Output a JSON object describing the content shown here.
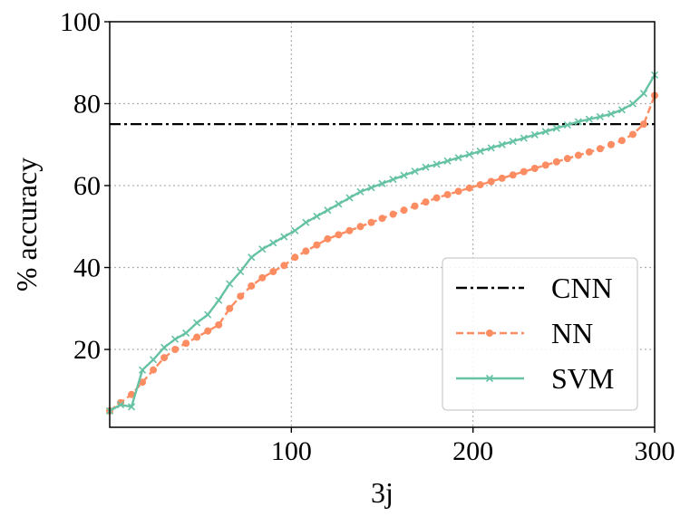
{
  "chart_data": {
    "type": "line",
    "title": "",
    "xlabel": "3j",
    "ylabel": "% accuracy",
    "xlim": [
      0,
      300
    ],
    "ylim": [
      1,
      100
    ],
    "xticks": [
      100,
      200,
      300
    ],
    "yticks": [
      20,
      40,
      60,
      80,
      100
    ],
    "grid": true,
    "legend_position": "lower-right",
    "series": [
      {
        "name": "CNN",
        "style": "dash-dot",
        "color": "#000000",
        "marker": "none",
        "x": [
          0,
          300
        ],
        "y": [
          75,
          75
        ]
      },
      {
        "name": "NN",
        "style": "dashed",
        "color": "#fc8d62",
        "marker": "circle",
        "x": [
          0,
          6,
          12,
          18,
          24,
          30,
          36,
          42,
          48,
          54,
          60,
          66,
          72,
          78,
          84,
          90,
          96,
          102,
          108,
          114,
          120,
          126,
          132,
          138,
          144,
          150,
          156,
          162,
          168,
          174,
          180,
          186,
          192,
          198,
          204,
          210,
          216,
          222,
          228,
          234,
          240,
          246,
          252,
          258,
          264,
          270,
          276,
          282,
          288,
          294,
          300
        ],
        "y": [
          5,
          7,
          9,
          12,
          15,
          18,
          20,
          21.5,
          23,
          24.5,
          26,
          30,
          33,
          35.5,
          37.5,
          39,
          40.5,
          42.5,
          44,
          45.5,
          47,
          48,
          49,
          50,
          51,
          52,
          53,
          54,
          55,
          56,
          57,
          57.8,
          58.6,
          59.4,
          60.2,
          61,
          61.8,
          62.6,
          63.4,
          64.2,
          65,
          65.8,
          66.6,
          67.4,
          68.2,
          69,
          70,
          71,
          72.5,
          75,
          82
        ]
      },
      {
        "name": "SVM",
        "style": "solid",
        "color": "#66c2a5",
        "marker": "x",
        "x": [
          0,
          6,
          12,
          18,
          24,
          30,
          36,
          42,
          48,
          54,
          60,
          66,
          72,
          78,
          84,
          90,
          96,
          102,
          108,
          114,
          120,
          126,
          132,
          138,
          144,
          150,
          156,
          162,
          168,
          174,
          180,
          186,
          192,
          198,
          204,
          210,
          216,
          222,
          228,
          234,
          240,
          246,
          252,
          258,
          264,
          270,
          276,
          282,
          288,
          294,
          300
        ],
        "y": [
          5,
          6.5,
          6,
          15,
          17.5,
          20.5,
          22.5,
          24,
          26.5,
          28.5,
          32,
          36,
          39,
          42.5,
          44.5,
          46,
          47.5,
          49,
          51,
          52.5,
          54,
          55.5,
          57,
          58.5,
          59.5,
          60.5,
          61.5,
          62.5,
          63.5,
          64.5,
          65.2,
          66,
          66.8,
          67.6,
          68.4,
          69.2,
          70,
          70.8,
          71.6,
          72.4,
          73.2,
          74,
          74.8,
          75.6,
          76.2,
          76.8,
          77.5,
          78.5,
          80,
          82.5,
          87
        ]
      }
    ]
  }
}
